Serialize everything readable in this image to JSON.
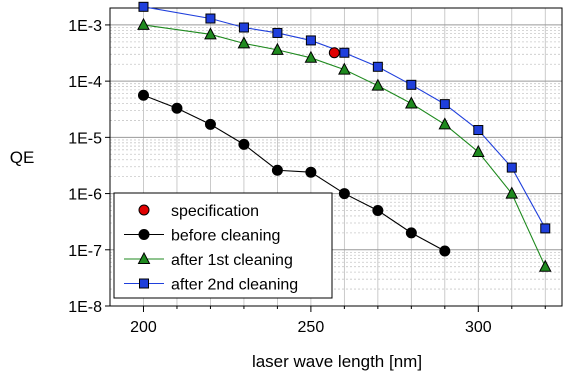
{
  "chart_data": {
    "type": "line",
    "title": "",
    "xlabel": "laser wave length [nm]",
    "ylabel": "QE",
    "xlim": [
      190,
      325
    ],
    "ylim": [
      1e-08,
      0.002
    ],
    "yscale": "log",
    "xticks": [
      200,
      250,
      300
    ],
    "yticks": [
      {
        "value": 0.001,
        "label": "1E-3"
      },
      {
        "value": 0.0001,
        "label": "1E-4"
      },
      {
        "value": 1e-05,
        "label": "1E-5"
      },
      {
        "value": 1e-06,
        "label": "1E-6"
      },
      {
        "value": 1e-07,
        "label": "1E-7"
      },
      {
        "value": 1e-08,
        "label": "1E-8"
      }
    ],
    "grid": true,
    "legend_position": "bottom-left",
    "series": [
      {
        "name": "specification",
        "marker": "circle",
        "line": false,
        "color": "#e00000",
        "x": [
          257
        ],
        "y": [
          0.00032
        ]
      },
      {
        "name": "before cleaning",
        "marker": "circle",
        "line": true,
        "color": "#000000",
        "x": [
          200,
          210,
          220,
          230,
          240,
          250,
          260,
          270,
          280,
          290
        ],
        "y": [
          5.6e-05,
          3.3e-05,
          1.7e-05,
          7.5e-06,
          2.6e-06,
          2.4e-06,
          1e-06,
          5e-07,
          2e-07,
          9.5e-08
        ]
      },
      {
        "name": "after 1st cleaning",
        "marker": "triangle",
        "line": true,
        "color": "#1f8a1f",
        "x": [
          200,
          220,
          230,
          240,
          250,
          260,
          270,
          280,
          290,
          300,
          310,
          320
        ],
        "y": [
          0.001,
          0.00068,
          0.00047,
          0.00036,
          0.00026,
          0.00016,
          8.3e-05,
          4e-05,
          1.7e-05,
          5.5e-06,
          1e-06,
          5e-08
        ]
      },
      {
        "name": "after 2nd cleaning",
        "marker": "square",
        "line": true,
        "color": "#1f3fdc",
        "x": [
          200,
          220,
          230,
          240,
          250,
          260,
          270,
          280,
          290,
          300,
          310,
          320
        ],
        "y": [
          0.0021,
          0.0013,
          0.0009,
          0.00072,
          0.00053,
          0.00032,
          0.00018,
          8.6e-05,
          3.9e-05,
          1.35e-05,
          2.9e-06,
          2.4e-07
        ]
      }
    ]
  }
}
